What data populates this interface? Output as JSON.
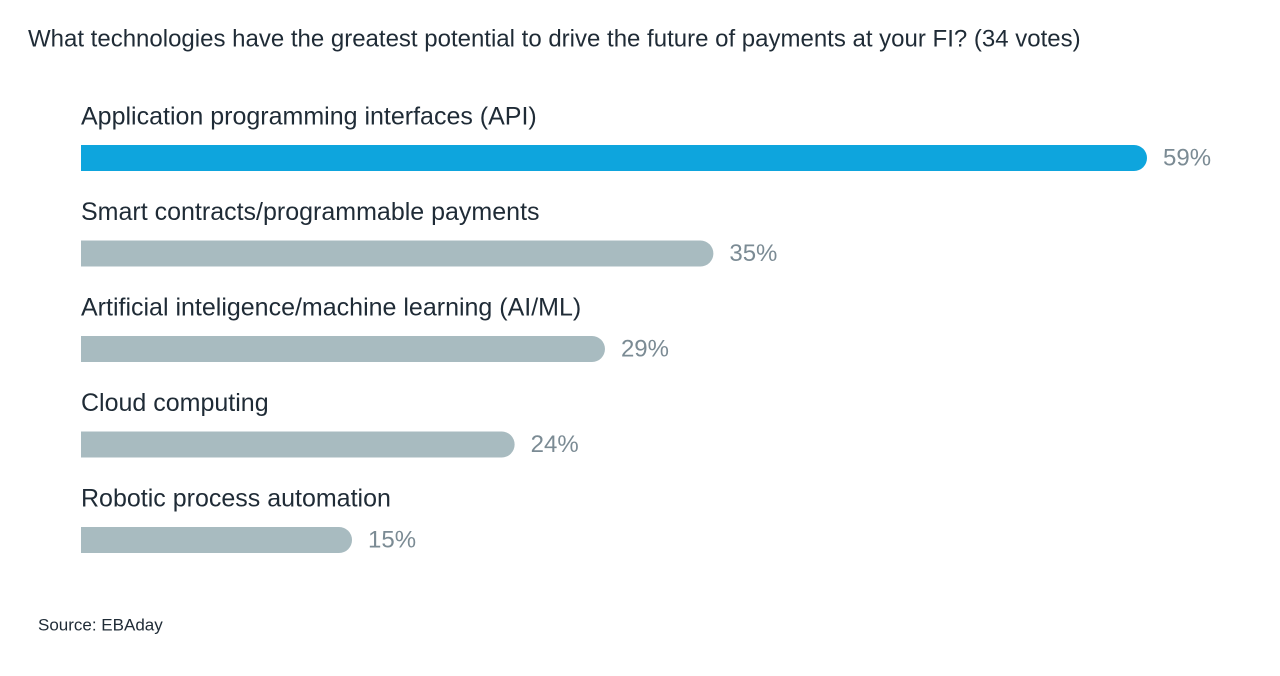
{
  "chart_data": {
    "type": "bar",
    "orientation": "horizontal",
    "title": "What technologies have the greatest potential to drive the future of payments at your FI? (34 votes)",
    "categories": [
      "Application programming interfaces (API)",
      "Smart contracts/programmable payments",
      "Artificial inteligence/machine learning (AI/ML)",
      "Cloud computing",
      "Robotic process automation"
    ],
    "values": [
      59,
      35,
      29,
      24,
      15
    ],
    "value_labels": [
      "59%",
      "35%",
      "29%",
      "24%",
      "15%"
    ],
    "colors": [
      "#0ea5dd",
      "#a8bbc0",
      "#a8bbc0",
      "#a8bbc0",
      "#a8bbc0"
    ],
    "source": "Source: EBAday"
  }
}
